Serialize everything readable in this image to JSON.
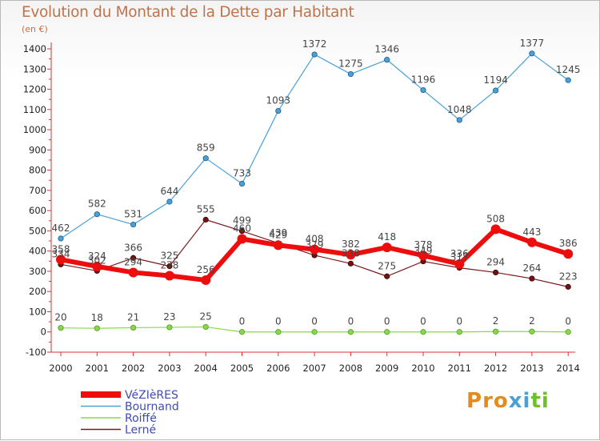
{
  "title": "Evolution du Montant de la Dette par Habitant",
  "unit": "(en €)",
  "logo": {
    "text": "Proxiti",
    "letter_colors": [
      "#e48b1f",
      "#e48b1f",
      "#e48b1f",
      "#4aa1d8",
      "#4aa1d8",
      "#6dbf2b",
      "#6dbf2b"
    ]
  },
  "chart_data": {
    "type": "line",
    "title": "Evolution du Montant de la Dette par Habitant",
    "ylabel": "(en €)",
    "xlabel": "",
    "x": [
      2000,
      2001,
      2002,
      2003,
      2004,
      2005,
      2006,
      2007,
      2008,
      2009,
      2010,
      2011,
      2012,
      2013,
      2014
    ],
    "ylim": [
      -100,
      1400
    ],
    "yticks": [
      -100,
      0,
      100,
      200,
      300,
      400,
      500,
      600,
      700,
      800,
      900,
      1000,
      1100,
      1200,
      1300,
      1400
    ],
    "grid": false,
    "legend_position": "bottom-left",
    "series": [
      {
        "name": "VéZIèRES",
        "color": "#ee0d0d",
        "values": [
          358,
          324,
          294,
          278,
          256,
          460,
          429,
          408,
          382,
          418,
          378,
          336,
          508,
          443,
          386
        ]
      },
      {
        "name": "Bournand",
        "color": "#4aa1d8",
        "values": [
          462,
          582,
          531,
          644,
          859,
          733,
          1093,
          1372,
          1275,
          1346,
          1196,
          1048,
          1194,
          1377,
          1245
        ]
      },
      {
        "name": "Roiffé",
        "color": "#8ad84a",
        "values": [
          20,
          18,
          21,
          23,
          25,
          0,
          0,
          0,
          0,
          0,
          0,
          0,
          2,
          2,
          0
        ]
      },
      {
        "name": "Lerné",
        "color": "#7a1a1a",
        "values": [
          334,
          302,
          366,
          325,
          555,
          499,
          439,
          379,
          338,
          275,
          349,
          317,
          294,
          264,
          223
        ]
      }
    ]
  }
}
